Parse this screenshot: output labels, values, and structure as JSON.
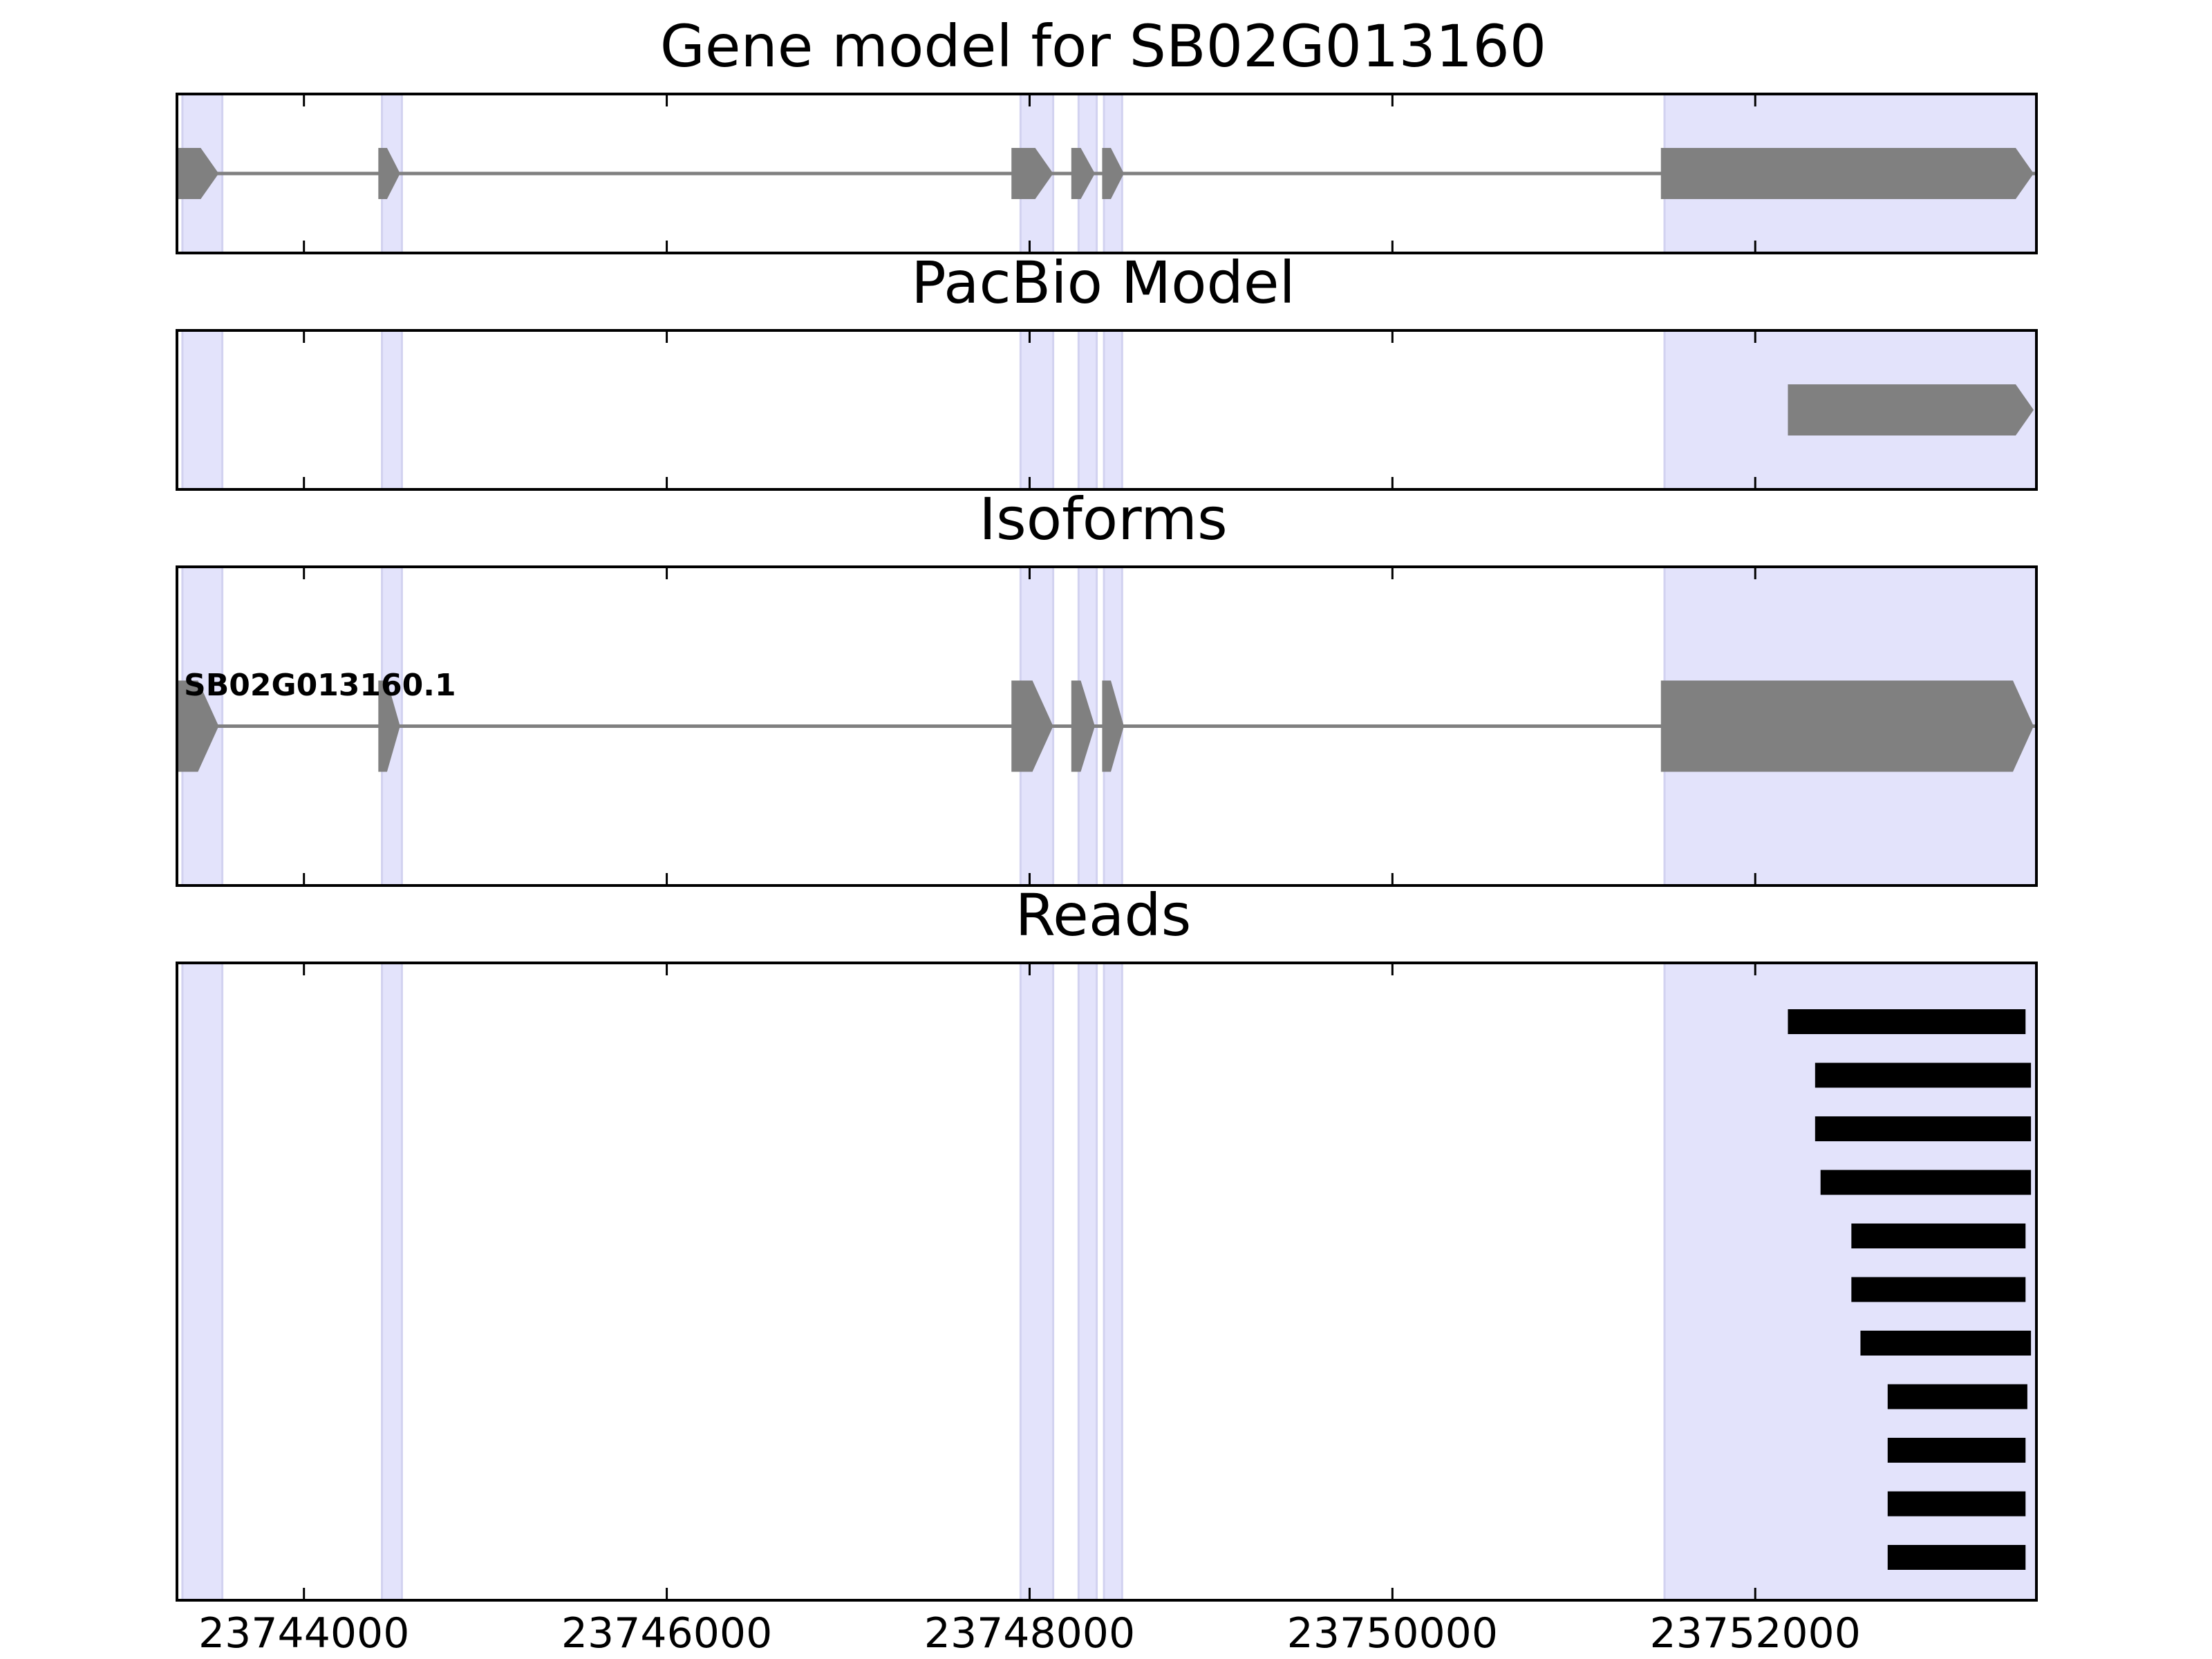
{
  "chart_data": [
    {
      "type": "gene-track",
      "title": "Gene model for SB02G013160",
      "xlim": [
        23743300,
        23753550
      ],
      "xticks": [
        23744000,
        23746000,
        23748000,
        23750000,
        23752000
      ],
      "intron": [
        23743300,
        23753550
      ],
      "exons": [
        {
          "start": 23743300,
          "end": 23743530,
          "arrow": true
        },
        {
          "start": 23744410,
          "end": 23744530,
          "arrow": true
        },
        {
          "start": 23747900,
          "end": 23748130,
          "arrow": true
        },
        {
          "start": 23748230,
          "end": 23748360,
          "arrow": true
        },
        {
          "start": 23748400,
          "end": 23748520,
          "arrow": true
        },
        {
          "start": 23751480,
          "end": 23753550,
          "arrow": true
        }
      ]
    },
    {
      "type": "gene-track",
      "title": "PacBio Model",
      "xlim": [
        23743300,
        23753550
      ],
      "xticks": [
        23744000,
        23746000,
        23748000,
        23750000,
        23752000
      ],
      "exons": [
        {
          "start": 23752180,
          "end": 23753550,
          "arrow": true
        }
      ]
    },
    {
      "type": "gene-track",
      "title": "Isoforms",
      "xlim": [
        23743300,
        23753550
      ],
      "xticks": [
        23744000,
        23746000,
        23748000,
        23750000,
        23752000
      ],
      "isoform_label": "SB02G013160.1",
      "intron": [
        23743300,
        23753550
      ],
      "exons": [
        {
          "start": 23743300,
          "end": 23743530,
          "arrow": true
        },
        {
          "start": 23744410,
          "end": 23744530,
          "arrow": true
        },
        {
          "start": 23747900,
          "end": 23748130,
          "arrow": true
        },
        {
          "start": 23748230,
          "end": 23748360,
          "arrow": true
        },
        {
          "start": 23748400,
          "end": 23748520,
          "arrow": true
        },
        {
          "start": 23751480,
          "end": 23753550,
          "arrow": true
        }
      ]
    },
    {
      "type": "reads",
      "title": "Reads",
      "xlim": [
        23743300,
        23753550
      ],
      "xticks": [
        23744000,
        23746000,
        23748000,
        23750000,
        23752000
      ],
      "xtick_labels": [
        "23744000",
        "23746000",
        "23748000",
        "23750000",
        "23752000"
      ],
      "reads": [
        {
          "start": 23752180,
          "end": 23753490
        },
        {
          "start": 23752330,
          "end": 23753520
        },
        {
          "start": 23752330,
          "end": 23753520
        },
        {
          "start": 23752360,
          "end": 23753520
        },
        {
          "start": 23752530,
          "end": 23753490
        },
        {
          "start": 23752530,
          "end": 23753490
        },
        {
          "start": 23752580,
          "end": 23753520
        },
        {
          "start": 23752730,
          "end": 23753500
        },
        {
          "start": 23752730,
          "end": 23753490
        },
        {
          "start": 23752730,
          "end": 23753490
        },
        {
          "start": 23752730,
          "end": 23753490
        }
      ]
    }
  ],
  "highlight_regions": [
    [
      23743330,
      23743550
    ],
    [
      23744430,
      23744540
    ],
    [
      23747950,
      23748130
    ],
    [
      23748270,
      23748370
    ],
    [
      23748410,
      23748510
    ],
    [
      23751500,
      23753570
    ]
  ],
  "colors": {
    "exon": "#808080",
    "intron": "#808080",
    "highlight_fill": "#e3e3fb",
    "highlight_edge": "#d2d2f0",
    "read": "#000000",
    "axis": "#000000"
  }
}
